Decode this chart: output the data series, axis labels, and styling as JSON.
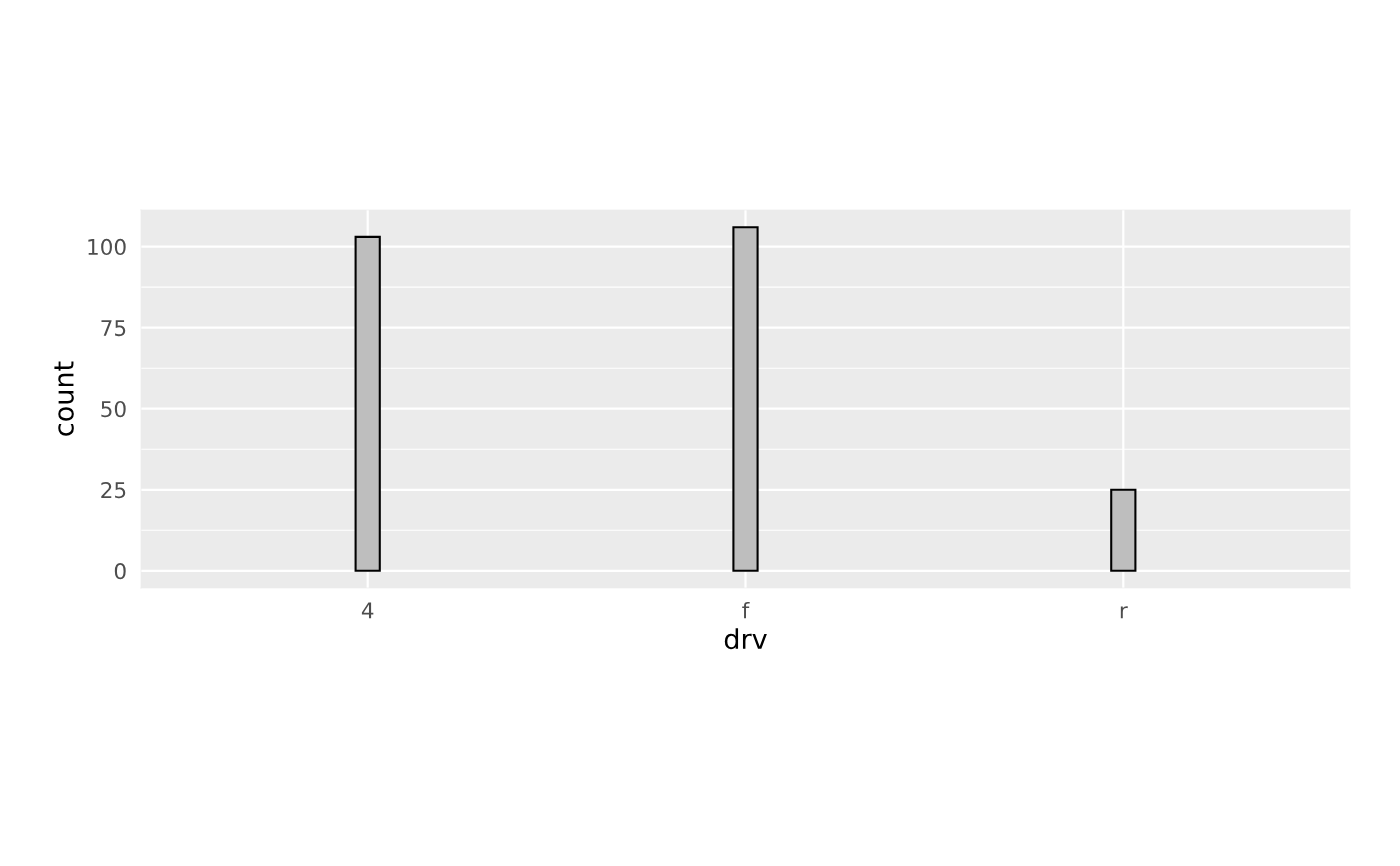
{
  "chart_data": {
    "type": "bar",
    "xlabel": "drv",
    "ylabel": "count",
    "categories": [
      "4",
      "f",
      "r"
    ],
    "values": [
      103,
      106,
      25
    ],
    "color": "#bebebe",
    "ylim": [
      -5.3,
      111.3
    ],
    "yticks": [
      0,
      25,
      50,
      75,
      100
    ],
    "grid": true
  }
}
